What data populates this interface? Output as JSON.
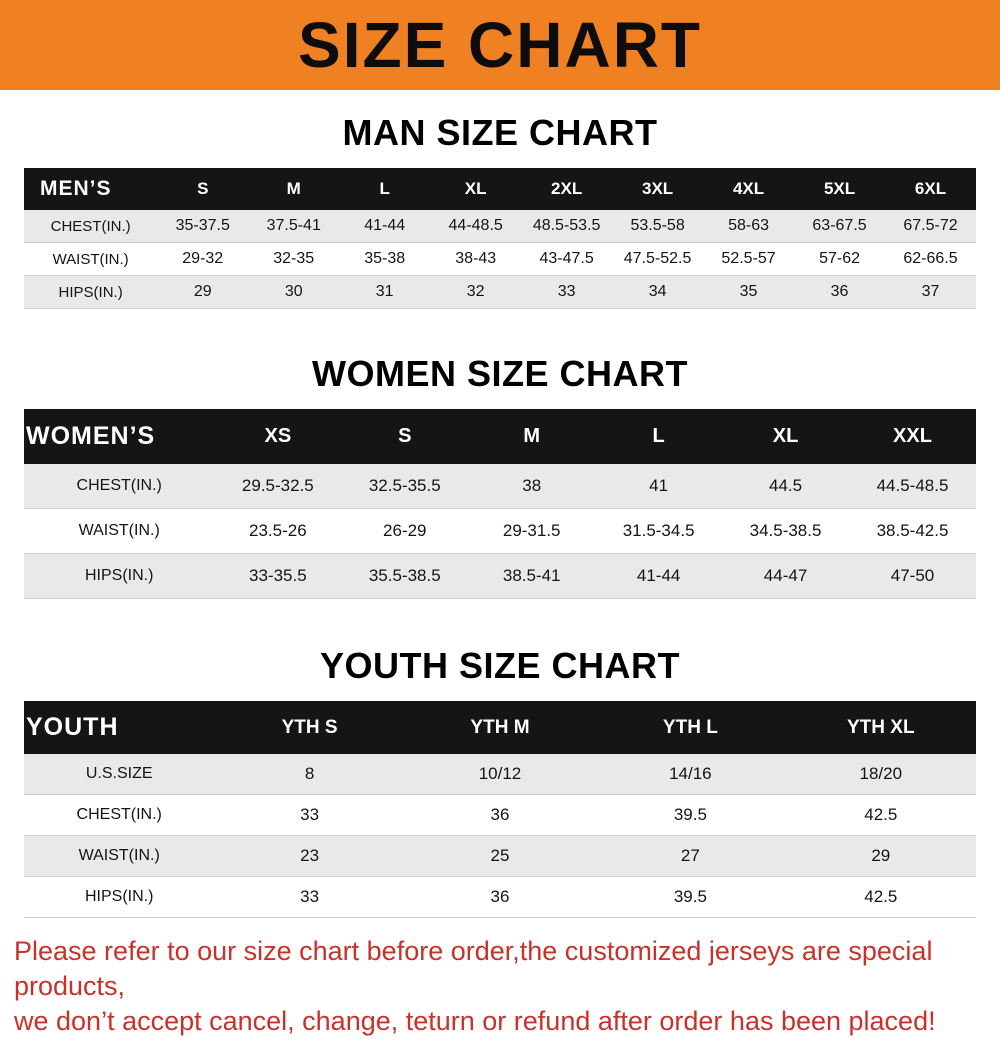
{
  "banner": {
    "title": "SIZE CHART",
    "bg_color": "#ef8122",
    "text_color": "#0d0d0d"
  },
  "sections": [
    {
      "id": "men",
      "heading": "MAN SIZE CHART",
      "table": {
        "header": [
          "MEN’S",
          "S",
          "M",
          "L",
          "XL",
          "2XL",
          "3XL",
          "4XL",
          "5XL",
          "6XL"
        ],
        "rows": [
          [
            "CHEST(IN.)",
            "35-37.5",
            "37.5-41",
            "41-44",
            "44-48.5",
            "48.5-53.5",
            "53.5-58",
            "58-63",
            "63-67.5",
            "67.5-72"
          ],
          [
            "WAIST(IN.)",
            "29-32",
            "32-35",
            "35-38",
            "38-43",
            "43-47.5",
            "47.5-52.5",
            "52.5-57",
            "57-62",
            "62-66.5"
          ],
          [
            "HIPS(IN.)",
            "29",
            "30",
            "31",
            "32",
            "33",
            "34",
            "35",
            "36",
            "37"
          ]
        ]
      }
    },
    {
      "id": "women",
      "heading": "WOMEN SIZE CHART",
      "table": {
        "header": [
          "WOMEN’S",
          "XS",
          "S",
          "M",
          "L",
          "XL",
          "XXL"
        ],
        "rows": [
          [
            "CHEST(IN.)",
            "29.5-32.5",
            "32.5-35.5",
            "38",
            "41",
            "44.5",
            "44.5-48.5"
          ],
          [
            "WAIST(IN.)",
            "23.5-26",
            "26-29",
            "29-31.5",
            "31.5-34.5",
            "34.5-38.5",
            "38.5-42.5"
          ],
          [
            "HIPS(IN.)",
            "33-35.5",
            "35.5-38.5",
            "38.5-41",
            "41-44",
            "44-47",
            "47-50"
          ]
        ]
      }
    },
    {
      "id": "youth",
      "heading": "YOUTH SIZE CHART",
      "table": {
        "header": [
          "YOUTH",
          "YTH S",
          "YTH M",
          "YTH L",
          "YTH XL"
        ],
        "rows": [
          [
            "U.S.SIZE",
            "8",
            "10/12",
            "14/16",
            "18/20"
          ],
          [
            "CHEST(IN.)",
            "33",
            "36",
            "39.5",
            "42.5"
          ],
          [
            "WAIST(IN.)",
            "23",
            "25",
            "27",
            "29"
          ],
          [
            "HIPS(IN.)",
            "33",
            "36",
            "39.5",
            "42.5"
          ]
        ]
      }
    }
  ],
  "footer": {
    "text_color": "#c8322b",
    "line1": "Please refer to our size chart before order,the customized jerseys are special products,",
    "line2": "we don’t accept cancel, change, teturn or refund after order has been placed!"
  }
}
